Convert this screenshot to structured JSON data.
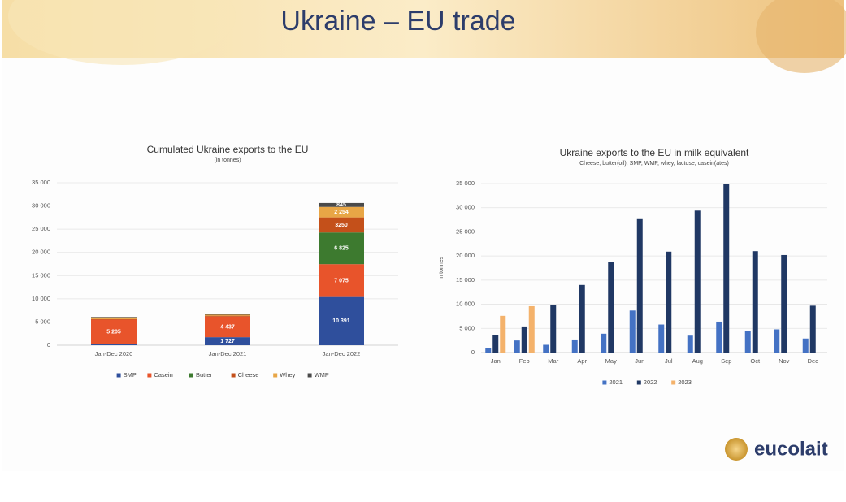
{
  "header": {
    "title": "Ukraine – EU trade"
  },
  "logo": "eucolait",
  "chart_data": [
    {
      "type": "bar",
      "stacked": true,
      "title": "Cumulated Ukraine exports to the EU",
      "subtitle": "(in tonnes)",
      "categories": [
        "Jan-Dec 2020",
        "Jan-Dec 2021",
        "Jan-Dec 2022"
      ],
      "series": [
        {
          "name": "SMP",
          "color": "#2f4f9c",
          "values": [
            300,
            1727,
            10391
          ],
          "value_labels": [
            null,
            "1 727",
            "10 391"
          ]
        },
        {
          "name": "Casein",
          "color": "#e8542b",
          "values": [
            5205,
            4437,
            7075
          ],
          "value_labels": [
            "5 205",
            "4 437",
            "7 075"
          ]
        },
        {
          "name": "Butter",
          "color": "#3d7a2f",
          "values": [
            0,
            0,
            6825
          ],
          "value_labels": [
            null,
            null,
            "6 825"
          ]
        },
        {
          "name": "Cheese",
          "color": "#c4501a",
          "values": [
            100,
            200,
            3250
          ],
          "value_labels": [
            null,
            null,
            "3250"
          ]
        },
        {
          "name": "Whey",
          "color": "#e8a646",
          "values": [
            400,
            200,
            2254
          ],
          "value_labels": [
            null,
            null,
            "2 254"
          ]
        },
        {
          "name": "WMP",
          "color": "#4a4a4a",
          "values": [
            100,
            100,
            845
          ],
          "value_labels": [
            null,
            null,
            "845"
          ]
        }
      ],
      "ylim": [
        0,
        35000
      ],
      "yticks": [
        0,
        {
          "value": 5000,
          "label": "5 000"
        },
        {
          "value": 10000,
          "label": "10 000"
        },
        {
          "value": 15000,
          "label": "15 000"
        },
        {
          "value": 20000,
          "label": "20 000"
        },
        {
          "value": 25000,
          "label": "25 000"
        },
        {
          "value": 30000,
          "label": "30 000"
        },
        {
          "value": 35000,
          "label": "35 000"
        }
      ],
      "grid": true
    },
    {
      "type": "bar",
      "stacked": false,
      "title": "Ukraine exports to the EU in milk equivalent",
      "subtitle": "Cheese, butter(oil), SMP, WMP, whey, lactose, casein(ates)",
      "ylabel": "in tonnes",
      "categories": [
        "Jan",
        "Feb",
        "Mar",
        "Apr",
        "May",
        "Jun",
        "Jul",
        "Aug",
        "Sep",
        "Oct",
        "Nov",
        "Dec"
      ],
      "series": [
        {
          "name": "2021",
          "color": "#4472c4",
          "values": [
            1000,
            2500,
            1600,
            2700,
            3900,
            8700,
            5800,
            3500,
            6400,
            4500,
            4800,
            2900
          ]
        },
        {
          "name": "2022",
          "color": "#203864",
          "values": [
            3700,
            5400,
            9800,
            14000,
            18800,
            27800,
            20900,
            29400,
            34900,
            21000,
            20200,
            9700
          ]
        },
        {
          "name": "2023",
          "color": "#f4b26b",
          "values": [
            7600,
            9600,
            null,
            null,
            null,
            null,
            null,
            null,
            null,
            null,
            null,
            null
          ]
        }
      ],
      "ylim": [
        0,
        35000
      ],
      "yticks": [
        0,
        {
          "value": 5000,
          "label": "5 000"
        },
        {
          "value": 10000,
          "label": "10 000"
        },
        {
          "value": 15000,
          "label": "15 000"
        },
        {
          "value": 20000,
          "label": "20 000"
        },
        {
          "value": 25000,
          "label": "25 000"
        },
        {
          "value": 30000,
          "label": "30 000"
        },
        {
          "value": 35000,
          "label": "35 000"
        }
      ],
      "grid": true
    }
  ]
}
